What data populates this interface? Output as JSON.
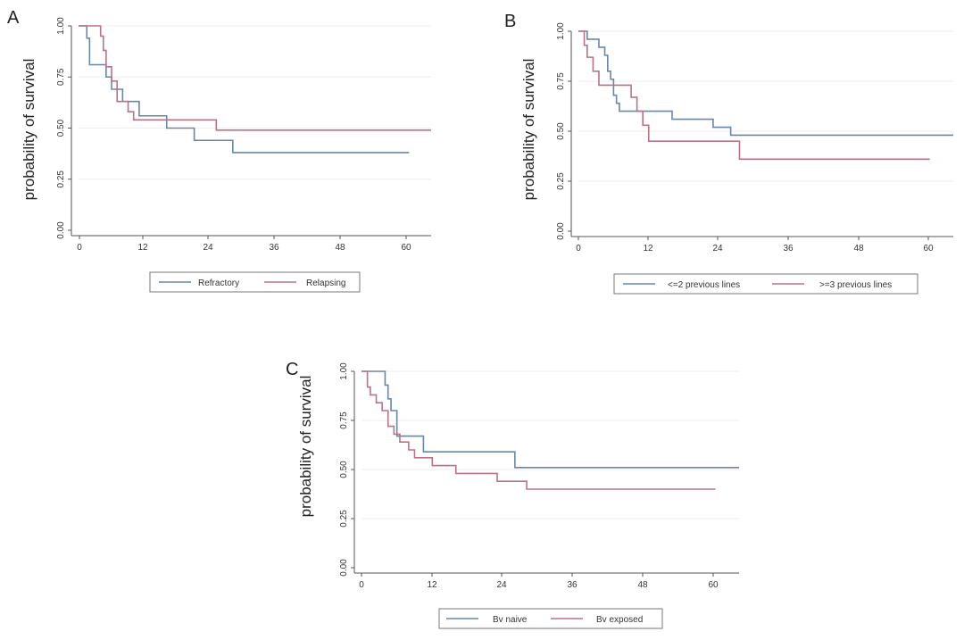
{
  "colors": {
    "blue": "#6a86a9",
    "red": "#b97384",
    "axis": "#555555",
    "grid": "#eeeeee"
  },
  "chart_data": [
    {
      "type": "line",
      "panel": "A",
      "ylabel": "probability of survival",
      "xlabel": "",
      "xlim": [
        0,
        64
      ],
      "ylim": [
        0,
        1
      ],
      "xticks": [
        "0",
        "12",
        "24",
        "36",
        "48",
        "60"
      ],
      "yticks": [
        "0.00",
        "0.25",
        "0.50",
        "0.75",
        "1.00"
      ],
      "legend": [
        "Refractory",
        "Relapsing"
      ],
      "series": [
        {
          "name": "Refractory",
          "color": "blue",
          "x": [
            0,
            1.5,
            2,
            3.5,
            5,
            6,
            8,
            11,
            16,
            21,
            26,
            28,
            60
          ],
          "y": [
            1.0,
            0.94,
            0.81,
            0.81,
            0.75,
            0.69,
            0.63,
            0.56,
            0.5,
            0.44,
            0.44,
            0.38,
            0.38
          ]
        },
        {
          "name": "Relapsing",
          "color": "red",
          "x": [
            0,
            2.5,
            4,
            4.5,
            5,
            6,
            7,
            9,
            10,
            16,
            25,
            64
          ],
          "y": [
            1.0,
            1.0,
            0.95,
            0.88,
            0.8,
            0.73,
            0.63,
            0.58,
            0.54,
            0.54,
            0.49,
            0.49
          ]
        }
      ]
    },
    {
      "type": "line",
      "panel": "B",
      "ylabel": "probability of survival",
      "xlabel": "",
      "xlim": [
        0,
        64
      ],
      "ylim": [
        0,
        1
      ],
      "xticks": [
        "0",
        "12",
        "24",
        "36",
        "48",
        "60"
      ],
      "yticks": [
        "0.00",
        "0.25",
        "0.50",
        "0.75",
        "1.00"
      ],
      "legend": [
        "<=2 previous lines",
        ">=3 previous lines"
      ],
      "series": [
        {
          "name": "<=2 previous lines",
          "color": "blue",
          "x": [
            0,
            1.5,
            3.5,
            4.5,
            5,
            5.5,
            6,
            6.5,
            7,
            16,
            23,
            26,
            64
          ],
          "y": [
            1.0,
            0.96,
            0.92,
            0.88,
            0.8,
            0.76,
            0.68,
            0.64,
            0.6,
            0.56,
            0.52,
            0.48,
            0.48
          ]
        },
        {
          "name": ">=3 previous lines",
          "color": "red",
          "x": [
            0,
            1,
            1.5,
            2.5,
            3.5,
            5,
            9,
            10,
            11,
            12,
            27.5,
            60
          ],
          "y": [
            1.0,
            0.93,
            0.87,
            0.8,
            0.73,
            0.73,
            0.67,
            0.6,
            0.53,
            0.45,
            0.36,
            0.36
          ]
        }
      ]
    },
    {
      "type": "line",
      "panel": "C",
      "ylabel": "probability of survival",
      "xlabel": "",
      "xlim": [
        0,
        64
      ],
      "ylim": [
        0,
        1
      ],
      "xticks": [
        "0",
        "12",
        "24",
        "36",
        "48",
        "60"
      ],
      "yticks": [
        "0.00",
        "0.25",
        "0.50",
        "0.75",
        "1.00"
      ],
      "legend": [
        "Bv naive",
        "Bv exposed"
      ],
      "series": [
        {
          "name": "Bv naive",
          "color": "blue",
          "x": [
            0,
            4,
            4.5,
            5,
            6,
            10.5,
            26,
            64
          ],
          "y": [
            1.0,
            0.93,
            0.86,
            0.8,
            0.67,
            0.59,
            0.51,
            0.51
          ]
        },
        {
          "name": "Bv exposed",
          "color": "red",
          "x": [
            0,
            1,
            1.5,
            2.5,
            3.5,
            4.5,
            5.5,
            6.5,
            8,
            9,
            12,
            16,
            23,
            28,
            60
          ],
          "y": [
            1.0,
            0.92,
            0.88,
            0.84,
            0.8,
            0.72,
            0.68,
            0.64,
            0.6,
            0.56,
            0.52,
            0.48,
            0.44,
            0.4,
            0.4
          ]
        }
      ]
    }
  ]
}
